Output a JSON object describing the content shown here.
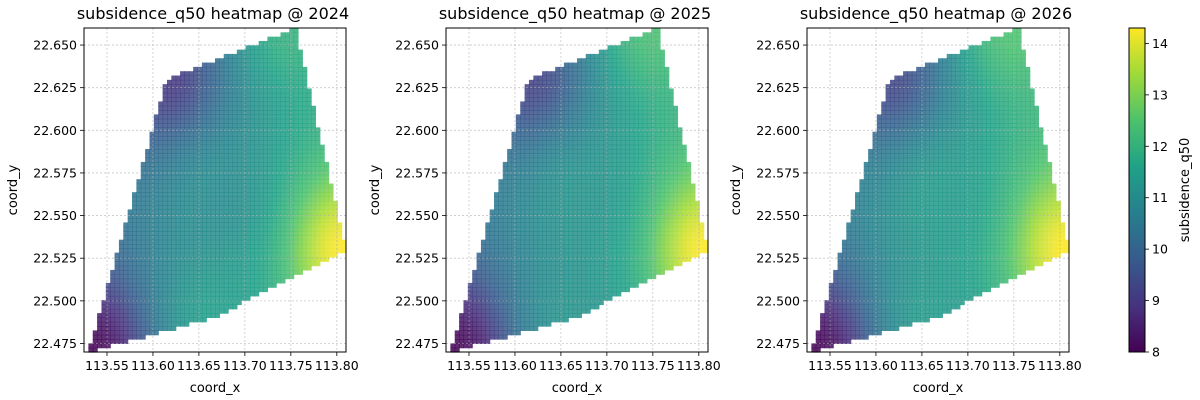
{
  "chart_data": [
    {
      "type": "heatmap",
      "title": "subsidence_q50 heatmap @ 2024",
      "xlabel": "coord_x",
      "ylabel": "coord_y",
      "xlim": [
        113.525,
        113.81
      ],
      "ylim": [
        22.47,
        22.66
      ],
      "xticks": [
        "113.55",
        "113.60",
        "113.65",
        "113.70",
        "113.75",
        "113.80"
      ],
      "yticks": [
        "22.475",
        "22.500",
        "22.525",
        "22.550",
        "22.575",
        "22.600",
        "22.625",
        "22.650"
      ],
      "grid": true,
      "region_polygon": [
        [
          113.53,
          22.47
        ],
        [
          113.615,
          22.63
        ],
        [
          113.755,
          22.66
        ],
        [
          113.81,
          22.53
        ],
        [
          113.665,
          22.49
        ]
      ],
      "value_anchors": [
        {
          "x": 113.53,
          "y": 22.47,
          "value": 8.0
        },
        {
          "x": 113.615,
          "y": 22.63,
          "value": 9.0
        },
        {
          "x": 113.755,
          "y": 22.66,
          "value": 12.0
        },
        {
          "x": 113.81,
          "y": 22.53,
          "value": 14.3
        },
        {
          "x": 113.665,
          "y": 22.49,
          "value": 11.5
        },
        {
          "x": 113.67,
          "y": 22.56,
          "value": 11.0
        }
      ]
    },
    {
      "type": "heatmap",
      "title": "subsidence_q50 heatmap @ 2025",
      "xlabel": "coord_x",
      "ylabel": "coord_y",
      "xlim": [
        113.525,
        113.81
      ],
      "ylim": [
        22.47,
        22.66
      ],
      "xticks": [
        "113.55",
        "113.60",
        "113.65",
        "113.70",
        "113.75",
        "113.80"
      ],
      "yticks": [
        "22.475",
        "22.500",
        "22.525",
        "22.550",
        "22.575",
        "22.600",
        "22.625",
        "22.650"
      ],
      "grid": true,
      "region_polygon": [
        [
          113.53,
          22.47
        ],
        [
          113.615,
          22.63
        ],
        [
          113.755,
          22.66
        ],
        [
          113.81,
          22.53
        ],
        [
          113.665,
          22.49
        ]
      ],
      "value_anchors": [
        {
          "x": 113.53,
          "y": 22.47,
          "value": 8.0
        },
        {
          "x": 113.615,
          "y": 22.63,
          "value": 9.2
        },
        {
          "x": 113.755,
          "y": 22.66,
          "value": 12.4
        },
        {
          "x": 113.81,
          "y": 22.53,
          "value": 14.3
        },
        {
          "x": 113.665,
          "y": 22.49,
          "value": 11.2
        },
        {
          "x": 113.67,
          "y": 22.56,
          "value": 11.2
        }
      ]
    },
    {
      "type": "heatmap",
      "title": "subsidence_q50 heatmap @ 2026",
      "xlabel": "coord_x",
      "ylabel": "coord_y",
      "xlim": [
        113.525,
        113.81
      ],
      "ylim": [
        22.47,
        22.66
      ],
      "xticks": [
        "113.55",
        "113.60",
        "113.65",
        "113.70",
        "113.75",
        "113.80"
      ],
      "yticks": [
        "22.475",
        "22.500",
        "22.525",
        "22.550",
        "22.575",
        "22.600",
        "22.625",
        "22.650"
      ],
      "grid": true,
      "region_polygon": [
        [
          113.53,
          22.47
        ],
        [
          113.615,
          22.63
        ],
        [
          113.755,
          22.66
        ],
        [
          113.81,
          22.53
        ],
        [
          113.665,
          22.49
        ]
      ],
      "value_anchors": [
        {
          "x": 113.53,
          "y": 22.47,
          "value": 8.0
        },
        {
          "x": 113.615,
          "y": 22.63,
          "value": 9.3
        },
        {
          "x": 113.755,
          "y": 22.66,
          "value": 12.5
        },
        {
          "x": 113.81,
          "y": 22.53,
          "value": 14.3
        },
        {
          "x": 113.665,
          "y": 22.49,
          "value": 11.4
        },
        {
          "x": 113.67,
          "y": 22.56,
          "value": 11.4
        }
      ]
    }
  ],
  "colorbar": {
    "label": "subsidence_q50",
    "colormap": "viridis",
    "range": [
      8,
      14.3
    ],
    "ticks": [
      "8",
      "9",
      "10",
      "11",
      "12",
      "13",
      "14"
    ]
  }
}
